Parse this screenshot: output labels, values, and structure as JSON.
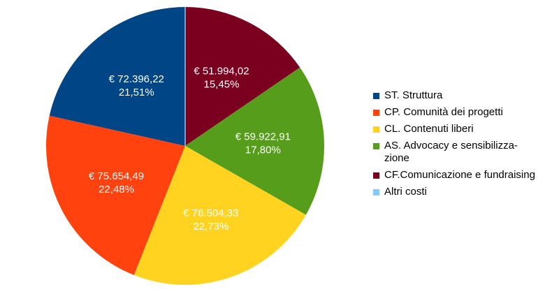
{
  "chart_data": {
    "type": "pie",
    "start_angle_deg": 0,
    "direction": "clockwise",
    "slices": [
      {
        "name": "CF.Comunicazione e fundraising",
        "value": 51994.02,
        "value_label": "€ 51.994,02",
        "percent_label": "15,45%",
        "color": "#7b0020",
        "label_color": "#ffffff"
      },
      {
        "name": "AS. Advocacy e sensibilizza-\nzione",
        "value": 59922.91,
        "value_label": "€ 59.922,91",
        "percent_label": "17,80%",
        "color": "#579d1c",
        "label_color": "#ffffff"
      },
      {
        "name": "CL. Contenuti liberi",
        "value": 76504.33,
        "value_label": "€ 76.504,33",
        "percent_label": "22,73%",
        "color": "#ffd320",
        "label_color": "#000000"
      },
      {
        "name": "CP. Comunità dei progetti",
        "value": 75654.49,
        "value_label": "€ 75.654,49",
        "percent_label": "22,48%",
        "color": "#ff420e",
        "label_color": "#ffffff"
      },
      {
        "name": "ST. Struttura",
        "value": 72396.22,
        "value_label": "€ 72.396,22",
        "percent_label": "21,51%",
        "color": "#004586",
        "label_color": "#ffffff"
      },
      {
        "name": "Altri costi",
        "value": 0.0,
        "value_label": "",
        "percent_label": "",
        "color": "#83caff",
        "label_color": "#ffffff"
      }
    ],
    "legend": {
      "placement": "right",
      "items": [
        {
          "label": "ST. Struttura",
          "color": "#004586"
        },
        {
          "label": "CP. Comunità dei progetti",
          "color": "#ff420e"
        },
        {
          "label": "CL. Contenuti liberi",
          "color": "#ffd320"
        },
        {
          "label": "AS. Advocacy e sensibilizza-\nzione",
          "color": "#579d1c"
        },
        {
          "label": "CF.Comunicazione e fundraising",
          "color": "#7b0020"
        },
        {
          "label": "Altri costi",
          "color": "#83caff"
        }
      ]
    }
  }
}
